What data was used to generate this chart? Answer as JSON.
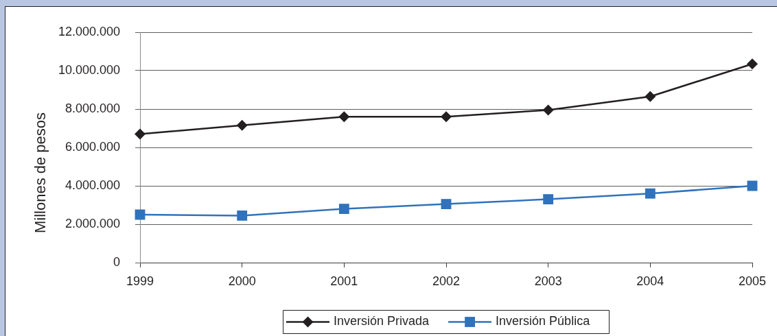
{
  "chart_data": {
    "type": "line",
    "ylabel": "Millones de pesos",
    "categories": [
      "1999",
      "2000",
      "2001",
      "2002",
      "2003",
      "2004",
      "2005"
    ],
    "series": [
      {
        "name": "Inversión Privada",
        "color": "#231f20",
        "marker": "diamond",
        "values": [
          6700000,
          7150000,
          7600000,
          7600000,
          7950000,
          8650000,
          10350000
        ]
      },
      {
        "name": "Inversión Pública",
        "color": "#3072bb",
        "marker": "square",
        "values": [
          2500000,
          2450000,
          2800000,
          3050000,
          3300000,
          3600000,
          4000000
        ]
      }
    ],
    "ylim": [
      0,
      12000000
    ],
    "yticks": [
      0,
      {
        "value": 2000000,
        "label": "2.000.000"
      },
      {
        "value": 4000000,
        "label": "4.000.000"
      },
      {
        "value": 6000000,
        "label": "6.000.000"
      },
      {
        "value": 8000000,
        "label": "8.000.000"
      },
      {
        "value": 10000000,
        "label": "10.000.000"
      },
      {
        "value": 12000000,
        "label": "12.000.000"
      }
    ],
    "grid": "y",
    "legend": "bottom"
  }
}
